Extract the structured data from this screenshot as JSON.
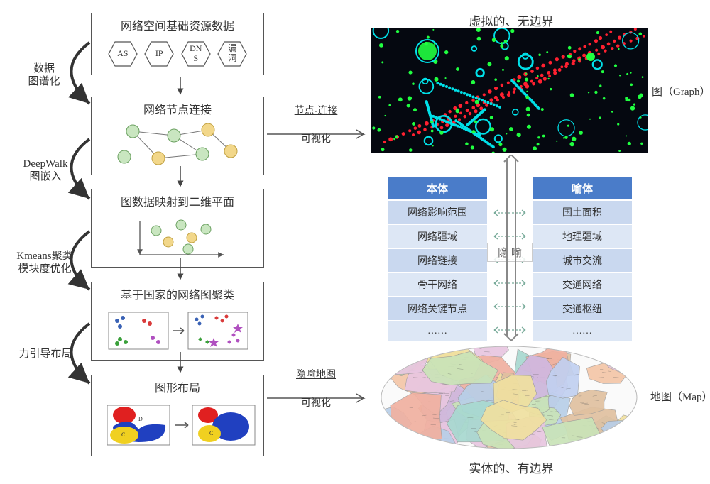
{
  "boxes": {
    "b1": {
      "title": "网络空间基础资源数据",
      "hex": [
        "AS",
        "IP",
        "DN\nS",
        "漏\n洞"
      ]
    },
    "b2": {
      "title": "网络节点连接"
    },
    "b3": {
      "title": "图数据映射到二维平面"
    },
    "b4": {
      "title": "基于国家的网络图聚类"
    },
    "b5": {
      "title": "图形布局"
    }
  },
  "leftLabels": {
    "l1": "数据\n图谱化",
    "l2": "DeepWalk\n图嵌入",
    "l3": "Kmeans聚类\n模块度优化",
    "l4": "力引导布局"
  },
  "midArrows": {
    "m1a": "节点-连接",
    "m1b": "可视化",
    "m2a": "隐喻地图",
    "m2b": "可视化"
  },
  "rightLabels": {
    "top": "虚拟的、无边界",
    "graphLabel": "图（Graph）",
    "mapLabel": "地图（Map）",
    "bottom": "实体的、有边界"
  },
  "table": {
    "headLeft": "本体",
    "headRight": "喻体",
    "rowsLeft": [
      "网络影响范围",
      "网络疆域",
      "网络链接",
      "骨干网络",
      "网络关键节点",
      "……"
    ],
    "rowsRight": [
      "国土面积",
      "地理疆域",
      "城市交流",
      "交通网络",
      "交通枢纽",
      "……"
    ],
    "middle": "隐  喻",
    "colors": {
      "headBg": "#4a7cc9",
      "cellBg": "#c9d8ef",
      "cellOdd": "#dde7f5",
      "txt": "#333"
    }
  },
  "graphViz": {
    "bg": "#050810",
    "colors": {
      "cyan": "#00e0e8",
      "green": "#20ff40",
      "red": "#ff2030",
      "blue": "#3060ff",
      "yellow": "#e0e040"
    }
  },
  "mapViz": {
    "palette": [
      "#f4c6a8",
      "#c9e3b8",
      "#b8cfe8",
      "#e8c6e0",
      "#f0e0a0",
      "#d0b8e0",
      "#a8d8d0",
      "#f0b0a0",
      "#c0d0f0",
      "#e0c0a0"
    ],
    "bg": "#fafafa"
  },
  "clusterColors": {
    "c1": "#3a62b5",
    "c2": "#d93a3a",
    "c3": "#3aa03a",
    "c4": "#b050c0",
    "c5": "#e08030"
  },
  "shapeColors": {
    "red": "#e02020",
    "blue": "#2040c0",
    "yellow": "#f0d020"
  },
  "nodeColors": {
    "g": "#c9e6c0",
    "o": "#f2d78a"
  }
}
